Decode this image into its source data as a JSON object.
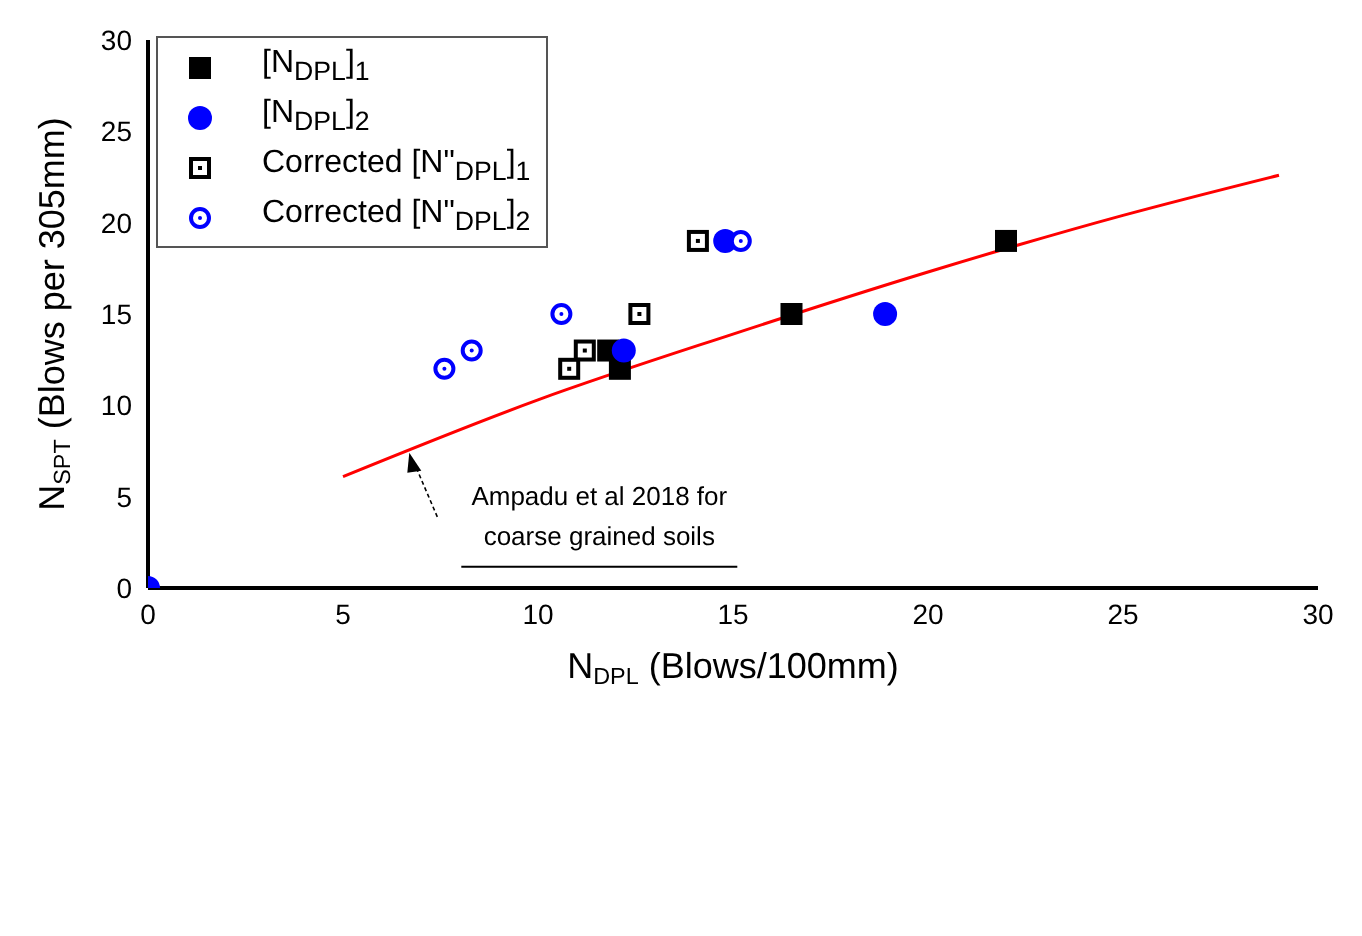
{
  "chart_data": {
    "type": "scatter",
    "xlabel": "N$_{DPL}$ (Blows/100mm)",
    "ylabel": "N$_{SPT}$ (Blows per 305mm)",
    "xlim": [
      0,
      30
    ],
    "ylim": [
      0,
      30
    ],
    "xticks": [
      0,
      5,
      10,
      15,
      20,
      25,
      30
    ],
    "yticks": [
      0,
      5,
      10,
      15,
      20,
      25,
      30
    ],
    "legend": "top left",
    "series": [
      {
        "name": "[N$_{DPL}$]$_{1}$",
        "color": "#000000",
        "marker": "square",
        "x": [
          12.1,
          11.8,
          16.5,
          22
        ],
        "values": [
          12,
          13,
          15,
          19
        ]
      },
      {
        "name": "[N$_{DPL}$]$_{2}$",
        "color": "#0000ff",
        "marker": "circle",
        "x": [
          0,
          12.2,
          18.9,
          14.8
        ],
        "values": [
          0,
          13,
          15,
          19
        ]
      },
      {
        "name": "Corrected [N\"$_{DPL}$]$_{1}$",
        "color": "#000000",
        "marker": "square",
        "x": [
          14.1,
          12.6,
          11.2,
          10.8
        ],
        "values": [
          19,
          15,
          13,
          12
        ]
      },
      {
        "name": "Corrected [N\"$_{DPL}$]$_{2}$",
        "color": "#0000ff",
        "marker": "circle",
        "x": [
          15.2,
          10.6,
          8.3,
          7.6
        ],
        "values": [
          19,
          15,
          13,
          12
        ]
      },
      {
        "type": "line",
        "color": "#ff0000",
        "marker": "none",
        "x": [
          5,
          10,
          15,
          20,
          25,
          29
        ],
        "values": [
          6.1,
          10.3,
          13.9,
          17.3,
          20.4,
          22.6
        ]
      }
    ],
    "annotations": [
      {
        "text": "Ampadu et al 2018 for\ncoarse grained soils",
        "x": 6.7,
        "y": 7.4
      }
    ]
  }
}
